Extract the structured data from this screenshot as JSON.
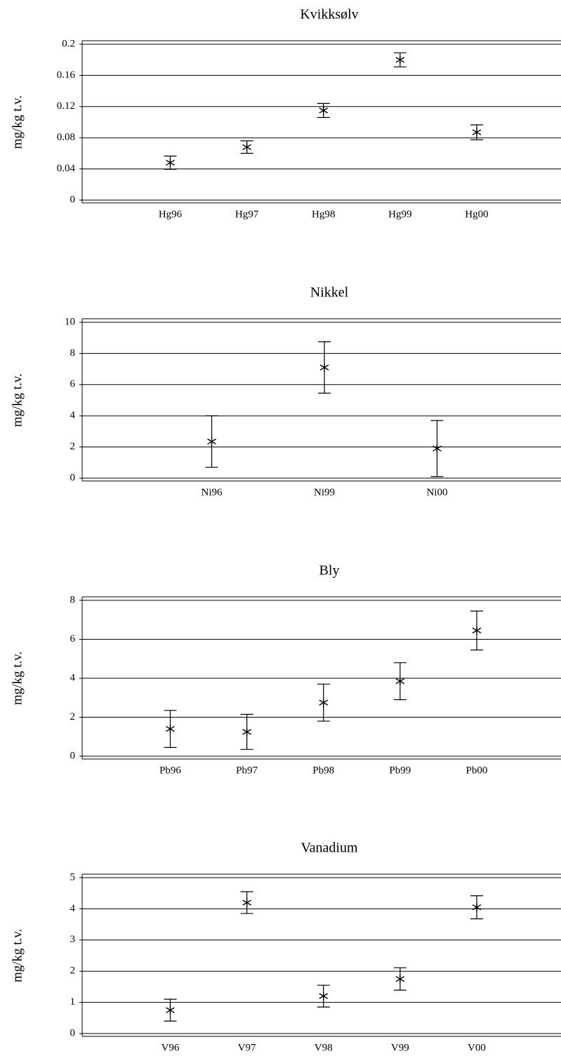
{
  "chart_data": [
    {
      "type": "errorbar",
      "title": "Kvikksølv",
      "ylabel": "mg/kg t.v.",
      "categories": [
        "Hg96",
        "Hg97",
        "Hg98",
        "Hg99",
        "Hg00"
      ],
      "values": [
        0.048,
        0.068,
        0.115,
        0.18,
        0.087
      ],
      "errors": [
        0.0085,
        0.008,
        0.009,
        0.009,
        0.0095
      ],
      "ylim": [
        0,
        0.2
      ],
      "yticks": [
        0,
        0.04,
        0.08,
        0.12,
        0.16,
        0.2
      ],
      "grid": true,
      "color": "#000000"
    },
    {
      "type": "errorbar",
      "title": "Nikkel",
      "ylabel": "mg/kg t.v.",
      "categories": [
        "Ni96",
        "Ni99",
        "Ni00"
      ],
      "values": [
        2.35,
        7.1,
        1.9
      ],
      "errors": [
        1.65,
        1.65,
        1.8
      ],
      "ylim": [
        0,
        10
      ],
      "yticks": [
        0,
        2,
        4,
        6,
        8,
        10
      ],
      "grid": true,
      "color": "#000000"
    },
    {
      "type": "errorbar",
      "title": "Bly",
      "ylabel": "mg/kg t.v.",
      "categories": [
        "Pb96",
        "Pb97",
        "Pb98",
        "Pb99",
        "Pb00"
      ],
      "values": [
        1.4,
        1.25,
        2.75,
        3.85,
        6.45
      ],
      "errors": [
        0.95,
        0.9,
        0.95,
        0.95,
        1.0
      ],
      "ylim": [
        0,
        8
      ],
      "yticks": [
        0,
        2,
        4,
        6,
        8
      ],
      "grid": true,
      "color": "#000000"
    },
    {
      "type": "errorbar",
      "title": "Vanadium",
      "ylabel": "mg/kg t.v.",
      "categories": [
        "V96",
        "V97",
        "V98",
        "V99",
        "V00"
      ],
      "values": [
        0.75,
        4.2,
        1.2,
        1.75,
        4.05
      ],
      "errors": [
        0.35,
        0.35,
        0.35,
        0.36,
        0.37
      ],
      "ylim": [
        0,
        5
      ],
      "yticks": [
        0,
        1,
        2,
        3,
        4,
        5
      ],
      "grid": true,
      "color": "#000000"
    }
  ]
}
